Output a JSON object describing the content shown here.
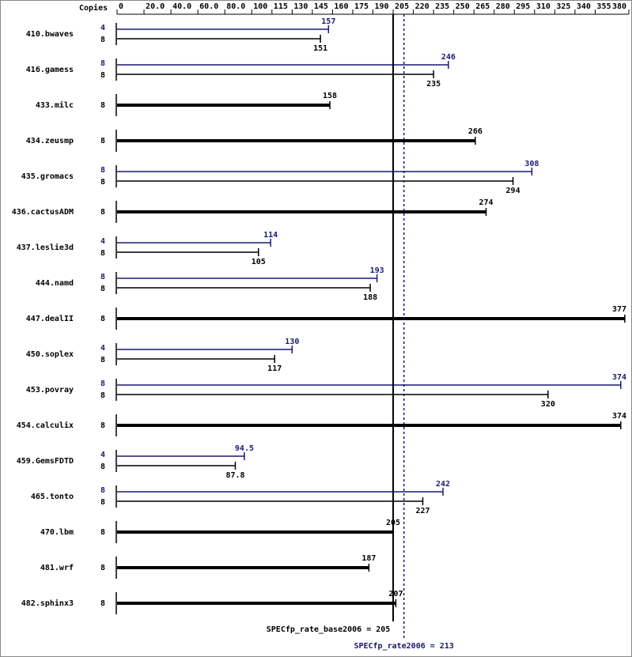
{
  "chart_data": {
    "type": "bar",
    "copies_header": "Copies",
    "categories": [
      "410.bwaves",
      "416.gamess",
      "433.milc",
      "434.zeusmp",
      "435.gromacs",
      "436.cactusADM",
      "437.leslie3d",
      "444.namd",
      "447.dealII",
      "450.soplex",
      "453.povray",
      "454.calculix",
      "459.GemsFDTD",
      "465.tonto",
      "470.lbm",
      "481.wrf",
      "482.sphinx3"
    ],
    "series": [
      {
        "color": "#191970",
        "copies": [
          4,
          8,
          null,
          null,
          8,
          null,
          4,
          8,
          null,
          4,
          8,
          null,
          4,
          8,
          null,
          null,
          null
        ],
        "values": [
          157,
          246,
          null,
          null,
          308,
          null,
          114,
          193,
          null,
          130,
          374,
          null,
          94.5,
          242,
          null,
          null,
          null
        ]
      },
      {
        "color": "#000000",
        "copies": [
          8,
          8,
          8,
          8,
          8,
          8,
          8,
          8,
          8,
          8,
          8,
          8,
          8,
          8,
          8,
          8,
          8
        ],
        "values": [
          151,
          235,
          158,
          266,
          294,
          274,
          105,
          188,
          377,
          117,
          320,
          374,
          87.8,
          227,
          205,
          187,
          207
        ]
      }
    ],
    "xlim": [
      0,
      380
    ],
    "xticks": [
      0,
      {
        "value": 20,
        "label": "20.0"
      },
      {
        "value": 40,
        "label": "40.0"
      },
      {
        "value": 60,
        "label": "60.0"
      },
      {
        "value": 80,
        "label": "80.0"
      },
      100,
      115,
      130,
      145,
      160,
      175,
      190,
      205,
      220,
      235,
      250,
      265,
      280,
      295,
      310,
      325,
      340,
      355,
      380
    ],
    "reference_lines": [
      {
        "label": "SPECfp_rate_base2006 = 205",
        "value": 205,
        "color": "#000000",
        "dashed": false
      },
      {
        "label": "SPECfp_rate2006 = 213",
        "value": 213,
        "color": "#191970",
        "dashed": true
      }
    ]
  }
}
